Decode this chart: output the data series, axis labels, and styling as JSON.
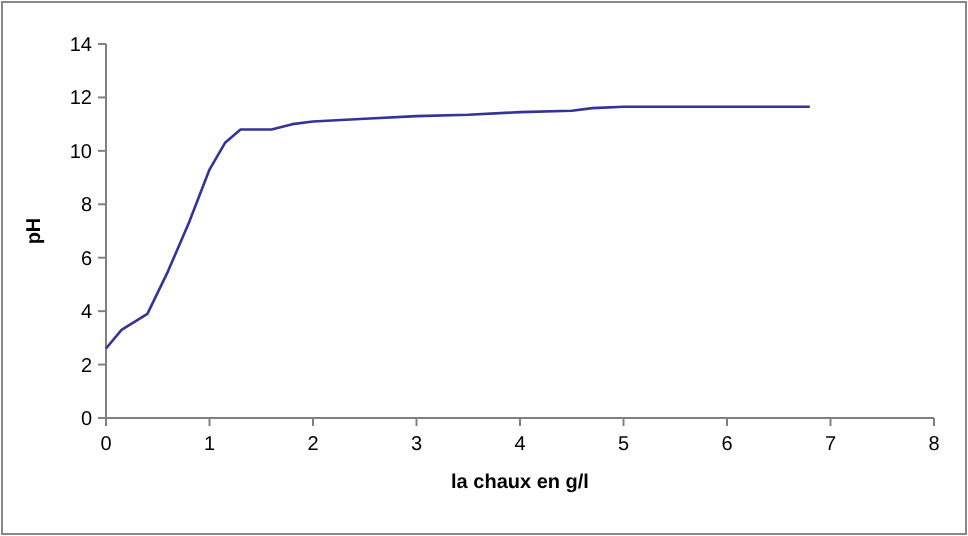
{
  "chart_data": {
    "type": "line",
    "xlabel": "la chaux en g/l",
    "ylabel": "pH",
    "xlim": [
      0,
      8
    ],
    "xticks": [
      0,
      1,
      2,
      3,
      4,
      5,
      6,
      7,
      8
    ],
    "ylim": [
      0,
      14
    ],
    "yticks": [
      0,
      2,
      4,
      6,
      8,
      10,
      12,
      14
    ],
    "marker": "none",
    "line_style": "solid",
    "series": [
      {
        "color": "#333399",
        "x": [
          0,
          0.15,
          0.4,
          0.6,
          0.8,
          1.0,
          1.15,
          1.3,
          1.6,
          1.8,
          2.0,
          2.5,
          3.0,
          3.5,
          4.0,
          4.5,
          4.7,
          5.0,
          6.0,
          6.8
        ],
        "values": [
          2.6,
          3.3,
          3.9,
          5.5,
          7.3,
          9.3,
          10.3,
          10.8,
          10.8,
          11.0,
          11.1,
          11.2,
          11.3,
          11.35,
          11.45,
          11.5,
          11.6,
          11.65,
          11.65,
          11.65
        ]
      }
    ]
  }
}
